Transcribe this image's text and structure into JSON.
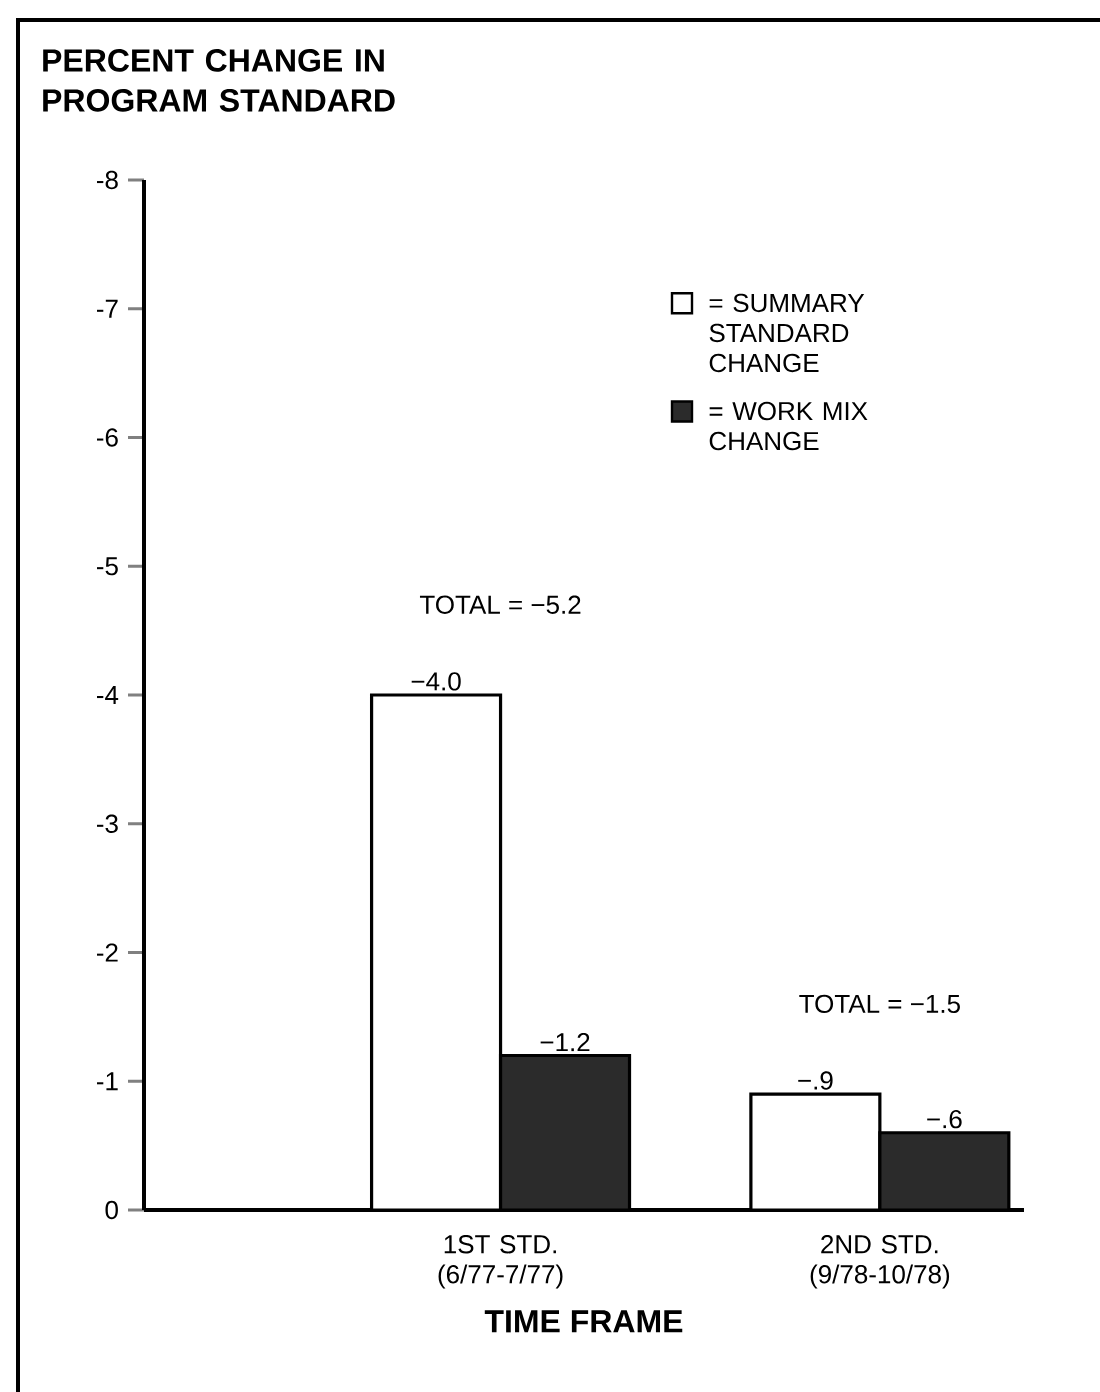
{
  "chart_data": {
    "type": "bar",
    "ylabel": "PERCENT CHANGE IN PROGRAM STANDARD",
    "xlabel": "TIME FRAME",
    "categories": [
      "1ST STD. (6/77-7/77)",
      "2ND STD. (9/78-10/78)"
    ],
    "series": [
      {
        "name": "= SUMMARY STANDARD CHANGE",
        "color": "#ffffff",
        "values": [
          -4.0,
          -0.9
        ],
        "value_labels": [
          "−4.0",
          "−.9"
        ]
      },
      {
        "name": "= WORK MIX CHANGE",
        "color": "#2b2b2b",
        "values": [
          -1.2,
          -0.6
        ],
        "value_labels": [
          "−1.2",
          "−.6"
        ]
      }
    ],
    "totals": [
      "TOTAL = −5.2",
      "TOTAL = −1.5"
    ],
    "ylim": [
      0,
      -8
    ],
    "yticks": [
      0,
      -1,
      -2,
      -3,
      -4,
      -5,
      -6,
      -7,
      -8
    ],
    "legend": "top right"
  }
}
